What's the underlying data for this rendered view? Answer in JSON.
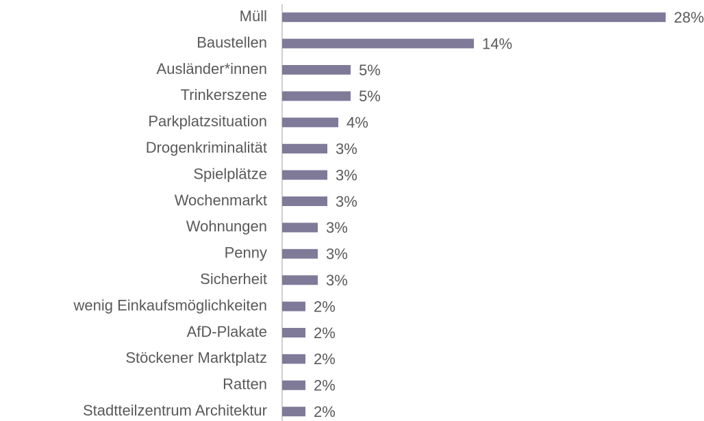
{
  "chart_data": {
    "type": "barh",
    "categories": [
      "Müll",
      "Baustellen",
      "Ausländer*innen",
      "Trinkerszene",
      "Parkplatzsituation",
      "Drogenkriminalität",
      "Spielplätze",
      "Wochenmarkt",
      "Wohnungen",
      "Penny",
      "Sicherheit",
      "wenig Einkaufsmöglichkeiten",
      "AfD-Plakate",
      "Stöckener Marktplatz",
      "Ratten",
      "Stadtteilzentrum Architektur"
    ],
    "values": [
      28,
      14,
      5,
      5,
      4.1,
      3.3,
      3.3,
      3.3,
      2.6,
      2.6,
      2.6,
      1.7,
      1.7,
      1.7,
      1.7,
      1.7
    ],
    "value_labels": [
      "28%",
      "14%",
      "5%",
      "5%",
      "4%",
      "3%",
      "3%",
      "3%",
      "3%",
      "3%",
      "3%",
      "2%",
      "2%",
      "2%",
      "2%",
      "2%"
    ],
    "color": "#807a99",
    "xlim": [
      0,
      28
    ]
  }
}
